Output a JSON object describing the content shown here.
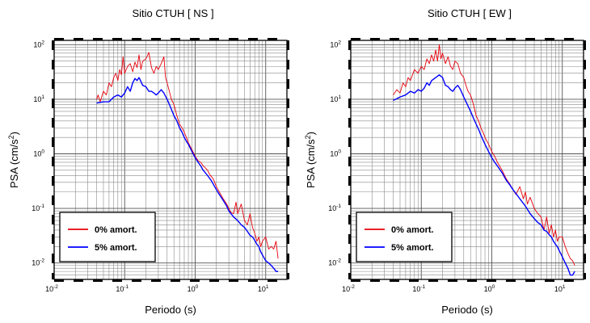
{
  "chart_data": [
    {
      "type": "line",
      "title": "Sitio CTUH [ NS ]",
      "xlabel": "Periodo (s)",
      "ylabel": "PSA (cm/s2)",
      "x_scale": "log",
      "y_scale": "log",
      "xlim": [
        0.01,
        20
      ],
      "ylim": [
        0.005,
        120
      ],
      "grid": true,
      "legend_position": "bottom-left",
      "x_ticks": [
        0.01,
        0.1,
        1,
        10
      ],
      "y_ticks": [
        0.01,
        0.1,
        1,
        10,
        100
      ],
      "series": [
        {
          "name": "0% amort.",
          "color": "#e8000b",
          "points": [
            [
              0.04,
              10
            ],
            [
              0.042,
              12
            ],
            [
              0.045,
              9
            ],
            [
              0.05,
              14
            ],
            [
              0.055,
              12
            ],
            [
              0.06,
              20
            ],
            [
              0.065,
              17
            ],
            [
              0.07,
              25
            ],
            [
              0.075,
              30
            ],
            [
              0.08,
              22
            ],
            [
              0.085,
              35
            ],
            [
              0.09,
              28
            ],
            [
              0.095,
              60
            ],
            [
              0.1,
              30
            ],
            [
              0.11,
              40
            ],
            [
              0.12,
              45
            ],
            [
              0.13,
              32
            ],
            [
              0.14,
              48
            ],
            [
              0.15,
              38
            ],
            [
              0.16,
              65
            ],
            [
              0.17,
              35
            ],
            [
              0.18,
              50
            ],
            [
              0.2,
              55
            ],
            [
              0.22,
              72
            ],
            [
              0.24,
              38
            ],
            [
              0.26,
              30
            ],
            [
              0.28,
              40
            ],
            [
              0.3,
              35
            ],
            [
              0.33,
              45
            ],
            [
              0.36,
              60
            ],
            [
              0.38,
              25
            ],
            [
              0.4,
              20
            ],
            [
              0.43,
              14
            ],
            [
              0.46,
              10
            ],
            [
              0.5,
              8
            ],
            [
              0.55,
              5
            ],
            [
              0.6,
              3.5
            ],
            [
              0.65,
              3.0
            ],
            [
              0.7,
              2.5
            ],
            [
              0.75,
              2.0
            ],
            [
              0.8,
              1.6
            ],
            [
              0.9,
              1.2
            ],
            [
              1.0,
              0.9
            ],
            [
              1.1,
              0.75
            ],
            [
              1.2,
              0.7
            ],
            [
              1.3,
              0.6
            ],
            [
              1.4,
              0.55
            ],
            [
              1.5,
              0.5
            ],
            [
              1.6,
              0.42
            ],
            [
              1.8,
              0.35
            ],
            [
              2.0,
              0.25
            ],
            [
              2.2,
              0.2
            ],
            [
              2.5,
              0.15
            ],
            [
              2.8,
              0.12
            ],
            [
              3.0,
              0.1
            ],
            [
              3.2,
              0.085
            ],
            [
              3.5,
              0.08
            ],
            [
              3.8,
              0.13
            ],
            [
              4.0,
              0.08
            ],
            [
              4.5,
              0.12
            ],
            [
              5.0,
              0.06
            ],
            [
              5.5,
              0.05
            ],
            [
              6.0,
              0.08
            ],
            [
              6.5,
              0.045
            ],
            [
              7.0,
              0.035
            ],
            [
              7.5,
              0.025
            ],
            [
              8.0,
              0.03
            ],
            [
              8.5,
              0.02
            ],
            [
              9.0,
              0.025
            ],
            [
              10,
              0.03
            ],
            [
              11,
              0.018
            ],
            [
              12,
              0.02
            ],
            [
              13,
              0.018
            ],
            [
              14,
              0.025
            ],
            [
              15,
              0.012
            ]
          ]
        },
        {
          "name": "5% amort.",
          "color": "#0000ff",
          "points": [
            [
              0.04,
              8.5
            ],
            [
              0.05,
              9
            ],
            [
              0.06,
              9
            ],
            [
              0.07,
              11
            ],
            [
              0.08,
              12
            ],
            [
              0.09,
              11
            ],
            [
              0.1,
              13
            ],
            [
              0.11,
              17
            ],
            [
              0.12,
              14
            ],
            [
              0.13,
              20
            ],
            [
              0.14,
              24
            ],
            [
              0.15,
              22
            ],
            [
              0.16,
              25
            ],
            [
              0.18,
              18
            ],
            [
              0.2,
              17
            ],
            [
              0.22,
              14
            ],
            [
              0.24,
              14
            ],
            [
              0.26,
              13
            ],
            [
              0.28,
              12
            ],
            [
              0.3,
              13
            ],
            [
              0.33,
              15
            ],
            [
              0.36,
              13
            ],
            [
              0.4,
              10
            ],
            [
              0.45,
              7
            ],
            [
              0.5,
              5
            ],
            [
              0.55,
              4
            ],
            [
              0.6,
              3
            ],
            [
              0.65,
              2.5
            ],
            [
              0.7,
              2
            ],
            [
              0.75,
              1.7
            ],
            [
              0.8,
              1.5
            ],
            [
              0.9,
              1.1
            ],
            [
              1.0,
              0.85
            ],
            [
              1.1,
              0.7
            ],
            [
              1.2,
              0.6
            ],
            [
              1.3,
              0.5
            ],
            [
              1.5,
              0.4
            ],
            [
              1.7,
              0.32
            ],
            [
              2.0,
              0.22
            ],
            [
              2.2,
              0.18
            ],
            [
              2.5,
              0.14
            ],
            [
              2.8,
              0.11
            ],
            [
              3.0,
              0.09
            ],
            [
              3.5,
              0.07
            ],
            [
              4.0,
              0.06
            ],
            [
              4.5,
              0.05
            ],
            [
              5.0,
              0.045
            ],
            [
              5.5,
              0.038
            ],
            [
              6.0,
              0.032
            ],
            [
              6.5,
              0.03
            ],
            [
              7.0,
              0.026
            ],
            [
              7.5,
              0.022
            ],
            [
              8.0,
              0.02
            ],
            [
              8.5,
              0.016
            ],
            [
              9.0,
              0.014
            ],
            [
              10,
              0.011
            ],
            [
              11,
              0.01
            ],
            [
              12,
              0.009
            ],
            [
              13,
              0.008
            ],
            [
              14,
              0.007
            ],
            [
              15,
              0.007
            ]
          ]
        }
      ]
    },
    {
      "type": "line",
      "title": "Sitio CTUH [ EW ]",
      "xlabel": "Periodo (s)",
      "ylabel": "PSA (cm/s2)",
      "x_scale": "log",
      "y_scale": "log",
      "xlim": [
        0.01,
        20
      ],
      "ylim": [
        0.005,
        120
      ],
      "grid": true,
      "legend_position": "bottom-left",
      "x_ticks": [
        0.01,
        0.1,
        1,
        10
      ],
      "y_ticks": [
        0.01,
        0.1,
        1,
        10,
        100
      ],
      "series": [
        {
          "name": "0% amort.",
          "color": "#e8000b",
          "points": [
            [
              0.04,
              12
            ],
            [
              0.045,
              15
            ],
            [
              0.05,
              13
            ],
            [
              0.055,
              20
            ],
            [
              0.06,
              17
            ],
            [
              0.065,
              25
            ],
            [
              0.07,
              22
            ],
            [
              0.075,
              28
            ],
            [
              0.08,
              35
            ],
            [
              0.09,
              30
            ],
            [
              0.1,
              40
            ],
            [
              0.11,
              35
            ],
            [
              0.12,
              55
            ],
            [
              0.13,
              45
            ],
            [
              0.14,
              65
            ],
            [
              0.15,
              50
            ],
            [
              0.16,
              80
            ],
            [
              0.17,
              50
            ],
            [
              0.18,
              100
            ],
            [
              0.19,
              55
            ],
            [
              0.2,
              70
            ],
            [
              0.22,
              45
            ],
            [
              0.24,
              60
            ],
            [
              0.26,
              40
            ],
            [
              0.28,
              35
            ],
            [
              0.3,
              50
            ],
            [
              0.33,
              45
            ],
            [
              0.36,
              30
            ],
            [
              0.4,
              25
            ],
            [
              0.43,
              18
            ],
            [
              0.46,
              14
            ],
            [
              0.5,
              12
            ],
            [
              0.55,
              8
            ],
            [
              0.6,
              5
            ],
            [
              0.65,
              4
            ],
            [
              0.7,
              3
            ],
            [
              0.75,
              2.5
            ],
            [
              0.8,
              2
            ],
            [
              0.9,
              1.5
            ],
            [
              1.0,
              1.1
            ],
            [
              1.1,
              0.9
            ],
            [
              1.2,
              0.7
            ],
            [
              1.4,
              0.5
            ],
            [
              1.6,
              0.35
            ],
            [
              1.8,
              0.28
            ],
            [
              2.0,
              0.22
            ],
            [
              2.2,
              0.18
            ],
            [
              2.5,
              0.25
            ],
            [
              2.8,
              0.15
            ],
            [
              3.0,
              0.2
            ],
            [
              3.2,
              0.12
            ],
            [
              3.5,
              0.16
            ],
            [
              4.0,
              0.1
            ],
            [
              4.5,
              0.08
            ],
            [
              5.0,
              0.07
            ],
            [
              5.5,
              0.04
            ],
            [
              6.0,
              0.07
            ],
            [
              6.5,
              0.035
            ],
            [
              7.0,
              0.05
            ],
            [
              7.5,
              0.03
            ],
            [
              8.0,
              0.04
            ],
            [
              8.5,
              0.025
            ],
            [
              9.0,
              0.03
            ],
            [
              10,
              0.03
            ],
            [
              11,
              0.02
            ],
            [
              12,
              0.015
            ],
            [
              13,
              0.012
            ],
            [
              14,
              0.011
            ],
            [
              15,
              0.009
            ]
          ]
        },
        {
          "name": "5% amort.",
          "color": "#0000ff",
          "points": [
            [
              0.04,
              9.5
            ],
            [
              0.05,
              11
            ],
            [
              0.06,
              12
            ],
            [
              0.07,
              14
            ],
            [
              0.08,
              13
            ],
            [
              0.09,
              15
            ],
            [
              0.1,
              14
            ],
            [
              0.11,
              16
            ],
            [
              0.12,
              20
            ],
            [
              0.13,
              18
            ],
            [
              0.14,
              22
            ],
            [
              0.16,
              25
            ],
            [
              0.18,
              28
            ],
            [
              0.2,
              25
            ],
            [
              0.22,
              18
            ],
            [
              0.24,
              17
            ],
            [
              0.26,
              15
            ],
            [
              0.28,
              14
            ],
            [
              0.3,
              16
            ],
            [
              0.33,
              18
            ],
            [
              0.36,
              15
            ],
            [
              0.4,
              11
            ],
            [
              0.45,
              8
            ],
            [
              0.5,
              6
            ],
            [
              0.55,
              4.5
            ],
            [
              0.6,
              3.5
            ],
            [
              0.65,
              2.8
            ],
            [
              0.7,
              2.2
            ],
            [
              0.75,
              1.8
            ],
            [
              0.8,
              1.5
            ],
            [
              0.9,
              1.1
            ],
            [
              1.0,
              0.85
            ],
            [
              1.1,
              0.7
            ],
            [
              1.2,
              0.6
            ],
            [
              1.4,
              0.45
            ],
            [
              1.6,
              0.33
            ],
            [
              1.8,
              0.27
            ],
            [
              2.0,
              0.22
            ],
            [
              2.5,
              0.15
            ],
            [
              3.0,
              0.11
            ],
            [
              3.5,
              0.08
            ],
            [
              4.0,
              0.065
            ],
            [
              4.5,
              0.055
            ],
            [
              5.0,
              0.05
            ],
            [
              5.5,
              0.04
            ],
            [
              6.0,
              0.038
            ],
            [
              6.5,
              0.033
            ],
            [
              7.0,
              0.03
            ],
            [
              7.5,
              0.025
            ],
            [
              8.0,
              0.022
            ],
            [
              8.5,
              0.02
            ],
            [
              9.0,
              0.017
            ],
            [
              10,
              0.013
            ],
            [
              11,
              0.01
            ],
            [
              12,
              0.008
            ],
            [
              13,
              0.006
            ],
            [
              14,
              0.006
            ],
            [
              15,
              0.007
            ]
          ]
        }
      ]
    }
  ]
}
